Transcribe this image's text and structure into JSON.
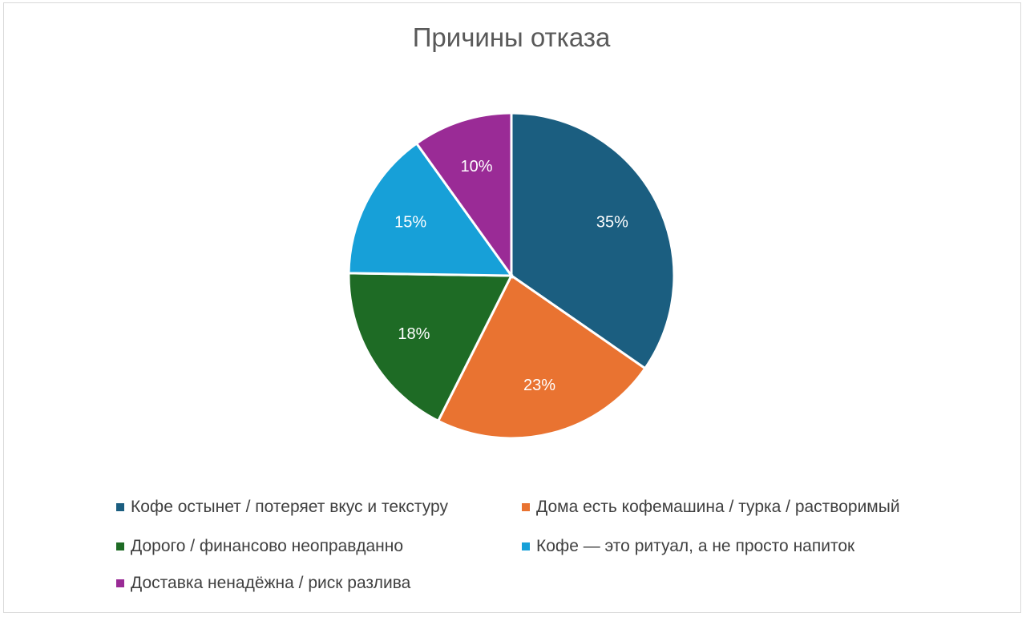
{
  "chart_data": {
    "type": "pie",
    "title": "Причины отказа",
    "slices": [
      {
        "label": "Кофе остынет / потеряет вкус и текстуру",
        "value": 35,
        "display": "35%",
        "color": "#1b5e80"
      },
      {
        "label": "Дома есть кофемашина / турка / растворимый",
        "value": 23,
        "display": "23%",
        "color": "#e97331"
      },
      {
        "label": "Дорого / финансово неоправданно",
        "value": 18,
        "display": "18%",
        "color": "#1e6b25"
      },
      {
        "label": "Кофе — это ритуал, а не просто напиток",
        "value": 15,
        "display": "15%",
        "color": "#17a0d8"
      },
      {
        "label": "Доставка ненадёжна / риск разлива",
        "value": 10,
        "display": "10%",
        "color": "#9a2b96"
      }
    ],
    "legend_position": "bottom",
    "data_labels": true
  }
}
